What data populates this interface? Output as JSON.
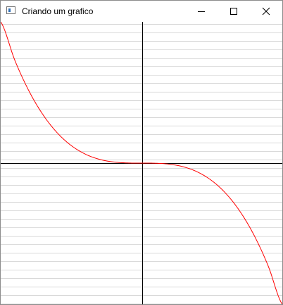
{
  "window": {
    "title": "Criando um grafico",
    "controls": [
      "minimize",
      "maximize",
      "close"
    ]
  },
  "icons": {
    "app": "window-icon",
    "minimize": "minimize-icon",
    "maximize": "maximize-icon",
    "close": "close-icon"
  },
  "colors": {
    "curve": "#ff0000",
    "axes": "#000000",
    "grid": "#d9d9d9",
    "background": "#ffffff"
  },
  "chart_data": {
    "type": "line",
    "function": "y = -x^3",
    "x_range": [
      -1,
      1
    ],
    "y_range": [
      -1,
      1
    ],
    "grid": "horizontal",
    "series": [
      {
        "x": [
          -1.0,
          -0.9,
          -0.8,
          -0.7,
          -0.6,
          -0.5,
          -0.4,
          -0.3,
          -0.2,
          -0.1,
          0.0,
          0.1,
          0.2,
          0.3,
          0.4,
          0.5,
          0.6,
          0.7,
          0.8,
          0.9,
          1.0
        ],
        "y": [
          1.0,
          0.729,
          0.512,
          0.343,
          0.216,
          0.125,
          0.064,
          0.027,
          0.008,
          0.001,
          0.0,
          -0.001,
          -0.008,
          -0.027,
          -0.064,
          -0.125,
          -0.216,
          -0.343,
          -0.512,
          -0.729,
          -1.0
        ]
      }
    ]
  }
}
